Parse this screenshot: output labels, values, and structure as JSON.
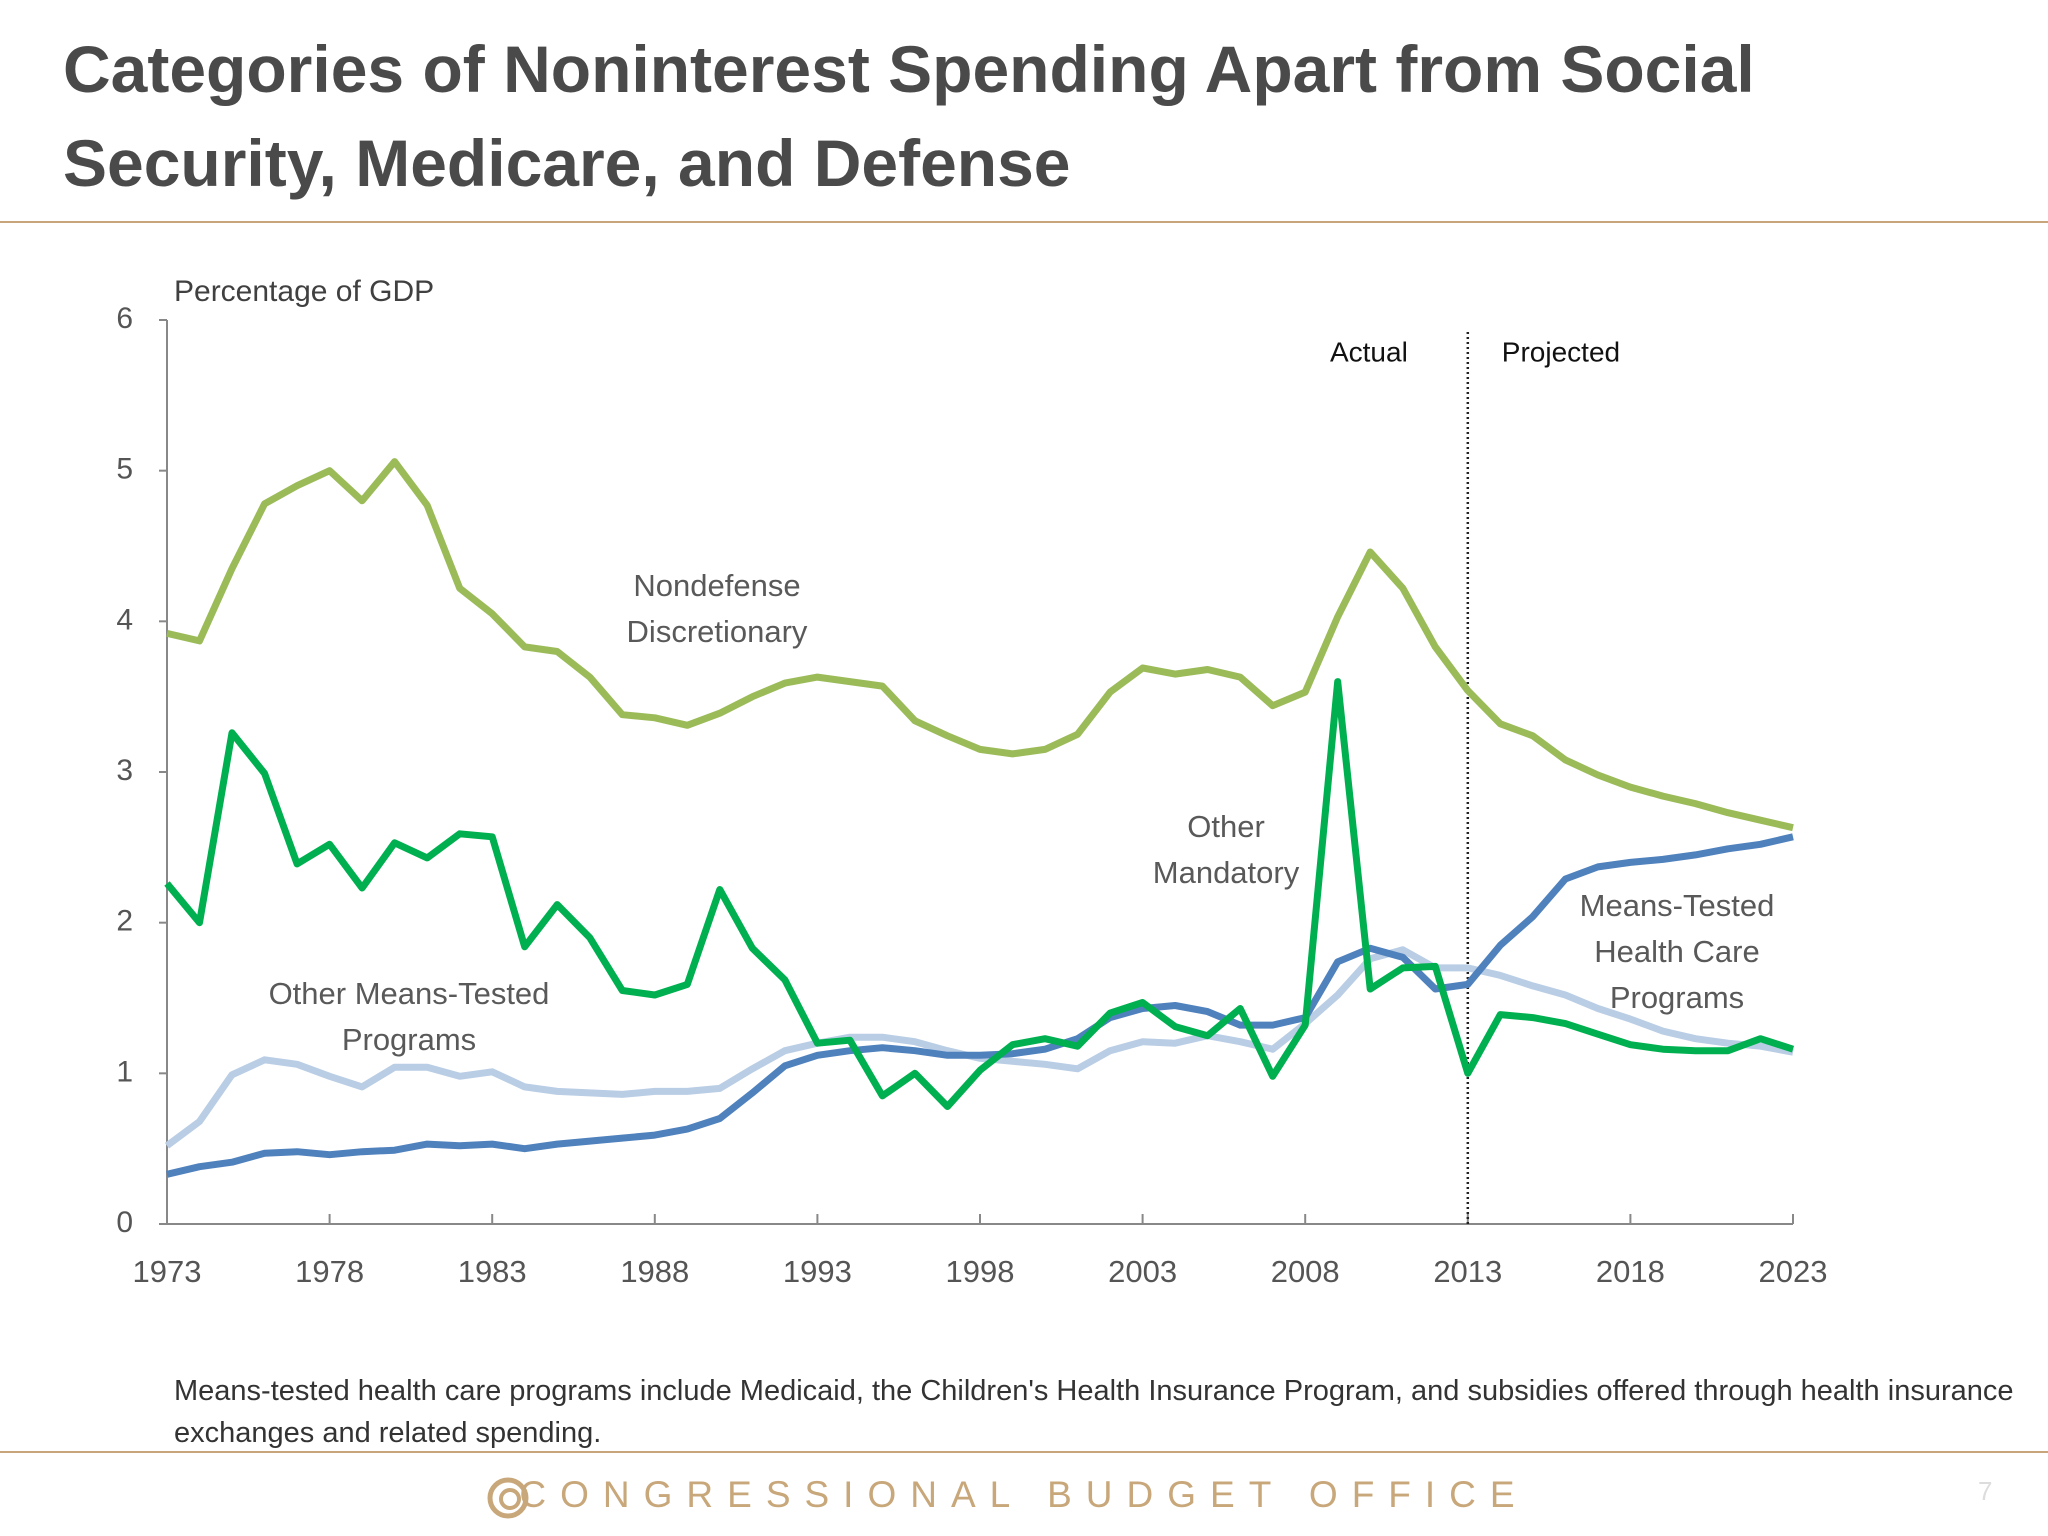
{
  "title": "Categories of Noninterest Spending Apart from Social Security, Medicare, and Defense",
  "chart_data": {
    "type": "line",
    "y_label": "Percentage of GDP",
    "x": [
      1973,
      1974,
      1975,
      1976,
      1977,
      1978,
      1979,
      1980,
      1981,
      1982,
      1983,
      1984,
      1985,
      1986,
      1987,
      1988,
      1989,
      1990,
      1991,
      1992,
      1993,
      1994,
      1995,
      1996,
      1997,
      1998,
      1999,
      2000,
      2001,
      2002,
      2003,
      2004,
      2005,
      2006,
      2007,
      2008,
      2009,
      2010,
      2011,
      2012,
      2013,
      2014,
      2015,
      2016,
      2017,
      2018,
      2019,
      2020,
      2021,
      2022,
      2023
    ],
    "xlim": [
      1973,
      2023
    ],
    "xticks": [
      1973,
      1978,
      1983,
      1988,
      1993,
      1998,
      2003,
      2008,
      2013,
      2018,
      2023
    ],
    "ylim": [
      0,
      6
    ],
    "yticks": [
      0,
      1,
      2,
      3,
      4,
      5,
      6
    ],
    "divider_x": 2013,
    "divider_left_label": "Actual",
    "divider_right_label": "Projected",
    "series": [
      {
        "name": "Nondefense Discretionary",
        "color": "#9bbb59",
        "values": [
          3.92,
          3.87,
          4.35,
          4.78,
          4.9,
          5.0,
          4.8,
          5.06,
          4.77,
          4.22,
          4.05,
          3.83,
          3.8,
          3.63,
          3.38,
          3.36,
          3.31,
          3.39,
          3.5,
          3.59,
          3.63,
          3.6,
          3.57,
          3.34,
          3.24,
          3.15,
          3.12,
          3.15,
          3.25,
          3.53,
          3.69,
          3.65,
          3.68,
          3.63,
          3.44,
          3.53,
          4.03,
          4.46,
          4.22,
          3.83,
          3.54,
          3.32,
          3.24,
          3.08,
          2.98,
          2.9,
          2.84,
          2.79,
          2.73,
          2.68,
          2.63
        ]
      },
      {
        "name": "Other Mandatory",
        "color": "#00b050",
        "values": [
          2.26,
          2.0,
          3.26,
          2.99,
          2.39,
          2.52,
          2.23,
          2.53,
          2.43,
          2.59,
          2.57,
          1.84,
          2.12,
          1.9,
          1.55,
          1.52,
          1.59,
          2.22,
          1.83,
          1.62,
          1.2,
          1.22,
          0.85,
          1.0,
          0.78,
          1.02,
          1.19,
          1.23,
          1.18,
          1.4,
          1.47,
          1.31,
          1.25,
          1.43,
          0.98,
          1.32,
          3.6,
          1.56,
          1.7,
          1.71,
          1.0,
          1.39,
          1.37,
          1.33,
          1.26,
          1.19,
          1.16,
          1.15,
          1.15,
          1.23,
          1.16
        ]
      },
      {
        "name": "Means-Tested Health Care Programs",
        "color": "#4f81bd",
        "values": [
          0.33,
          0.38,
          0.41,
          0.47,
          0.48,
          0.46,
          0.48,
          0.49,
          0.53,
          0.52,
          0.53,
          0.5,
          0.53,
          0.55,
          0.57,
          0.59,
          0.63,
          0.7,
          0.87,
          1.05,
          1.12,
          1.15,
          1.17,
          1.15,
          1.12,
          1.12,
          1.13,
          1.16,
          1.23,
          1.37,
          1.43,
          1.45,
          1.41,
          1.32,
          1.32,
          1.37,
          1.74,
          1.83,
          1.77,
          1.56,
          1.59,
          1.85,
          2.04,
          2.29,
          2.37,
          2.4,
          2.42,
          2.45,
          2.49,
          2.52,
          2.57
        ]
      },
      {
        "name": "Other Means-Tested Programs",
        "color": "#b9cde5",
        "values": [
          0.52,
          0.68,
          0.99,
          1.09,
          1.06,
          0.98,
          0.91,
          1.04,
          1.04,
          0.98,
          1.01,
          0.91,
          0.88,
          0.87,
          0.86,
          0.88,
          0.88,
          0.9,
          1.03,
          1.15,
          1.2,
          1.24,
          1.24,
          1.21,
          1.15,
          1.1,
          1.08,
          1.06,
          1.03,
          1.15,
          1.21,
          1.2,
          1.25,
          1.21,
          1.16,
          1.33,
          1.52,
          1.76,
          1.82,
          1.7,
          1.7,
          1.65,
          1.58,
          1.52,
          1.43,
          1.36,
          1.28,
          1.23,
          1.2,
          1.18,
          1.14
        ]
      }
    ]
  },
  "note": "Means-tested health care programs include Medicaid, the Children's Health Insurance Program, and subsidies offered through health insurance exchanges and related spending.",
  "footer": "CONGRESSIONAL BUDGET OFFICE",
  "page_number": "7"
}
